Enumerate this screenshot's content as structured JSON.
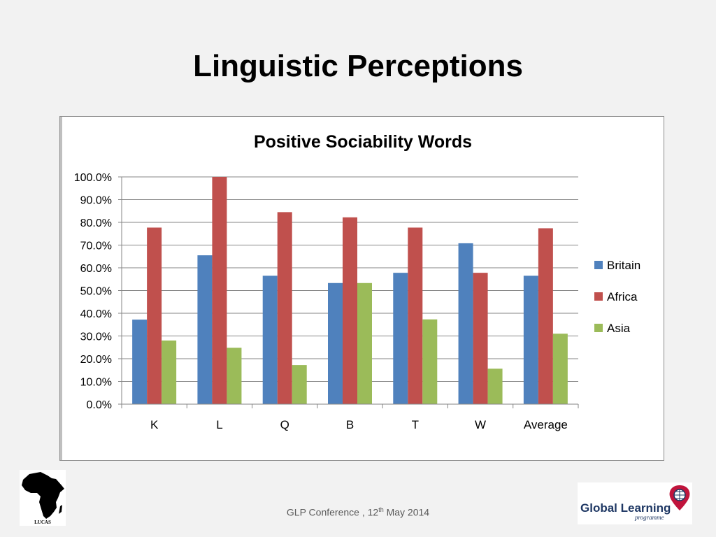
{
  "slide": {
    "title": "Linguistic Perceptions",
    "footer_prefix": "GLP Conference , 12",
    "footer_sup": "th",
    "footer_suffix": " May 2014"
  },
  "logos": {
    "left_logo_text": "LUCAS",
    "right_logo_text": "Global Learning",
    "right_logo_sub": "programme"
  },
  "colors": {
    "britain": "#4f81bd",
    "africa": "#c0504d",
    "asia": "#9bbb59"
  },
  "chart_data": {
    "type": "bar",
    "title": "Positive Sociability Words",
    "xlabel": "",
    "ylabel": "",
    "ylim": [
      0,
      100
    ],
    "y_tick_labels": [
      "0.0%",
      "10.0%",
      "20.0%",
      "30.0%",
      "40.0%",
      "50.0%",
      "60.0%",
      "70.0%",
      "80.0%",
      "90.0%",
      "100.0%"
    ],
    "categories": [
      "K",
      "L",
      "Q",
      "B",
      "T",
      "W",
      "Average"
    ],
    "series": [
      {
        "name": "Britain",
        "values": [
          37.2,
          65.5,
          56.5,
          53.3,
          57.8,
          70.8,
          56.5
        ]
      },
      {
        "name": "Africa",
        "values": [
          77.7,
          100.0,
          84.5,
          82.2,
          77.7,
          57.8,
          77.4
        ]
      },
      {
        "name": "Asia",
        "values": [
          28.0,
          24.8,
          17.2,
          53.3,
          37.3,
          15.6,
          31.0
        ]
      }
    ],
    "grid": true,
    "legend_position": "right"
  }
}
